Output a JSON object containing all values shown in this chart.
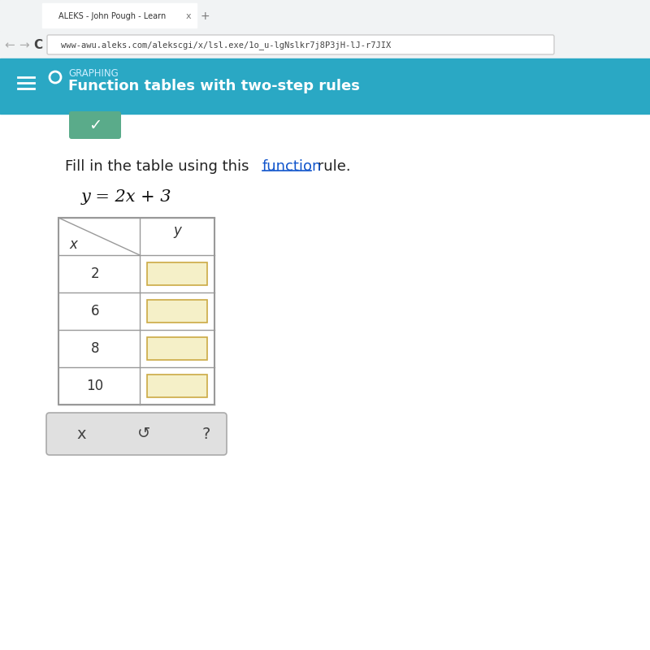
{
  "bg_color": "#e8e8e8",
  "browser_bar_color": "#f1f3f4",
  "browser_tab_text": "ALEKS - John Pough - Learn",
  "url_text": "www-awu.aleks.com/alekscgi/x/lsl.exe/1o_u-lgNslkr7j8P3jH-lJ-r7JIX",
  "header_bg": "#2aa8c4",
  "header_label": "GRAPHING",
  "header_title": "Function tables with two-step rules",
  "instruction_before": "Fill in the table using this ",
  "instruction_link": "function",
  "instruction_after": " rule.",
  "equation": "y = 2x + 3",
  "x_values": [
    "x",
    "2",
    "6",
    "8",
    "10"
  ],
  "y_header": "y",
  "table_bg": "#ffffff",
  "table_border": "#999999",
  "input_box_color": "#f5f0c8",
  "input_box_border": "#ccaa44",
  "button_bg": "#e0e0e0",
  "button_border": "#aaaaaa",
  "button_texts": [
    "x",
    "↺",
    "?"
  ],
  "check_button_bg": "#5aab8a",
  "check_button_color": "#ffffff",
  "page_bg": "#ffffff",
  "link_color": "#1155cc"
}
